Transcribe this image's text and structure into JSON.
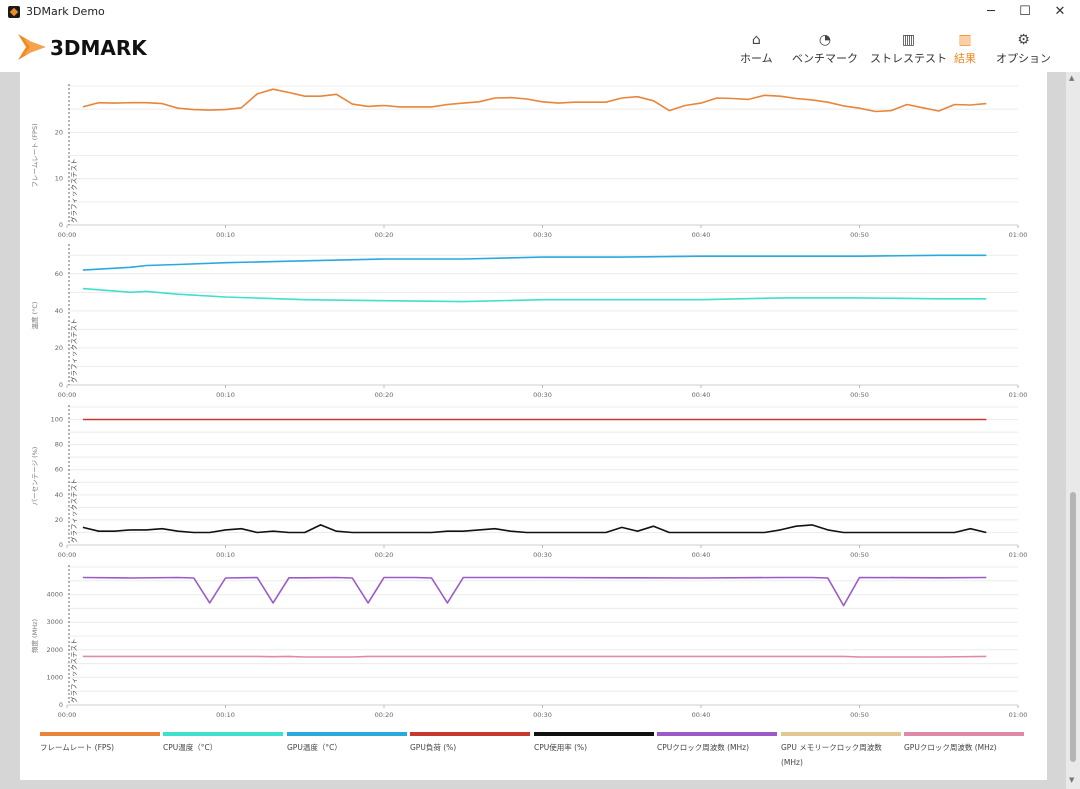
{
  "window": {
    "title": "3DMark Demo",
    "minimize": "─",
    "maximize": "☐",
    "close": "✕"
  },
  "nav": [
    {
      "label": "ホーム",
      "icon": "home-icon",
      "glyph": "⌂",
      "active": false
    },
    {
      "label": "ベンチマーク",
      "icon": "gauge-icon",
      "glyph": "◔",
      "active": false
    },
    {
      "label": "ストレステスト",
      "icon": "stress-chart-icon",
      "glyph": "▥",
      "active": false
    },
    {
      "label": "結果",
      "icon": "results-chart-icon",
      "glyph": "▥",
      "active": true
    },
    {
      "label": "オプション",
      "icon": "gear-icon",
      "glyph": "⚙",
      "active": false
    }
  ],
  "logo_text": "3DMARK",
  "colors": {
    "accent": "#f08a24",
    "fps": "#e8853a",
    "cpu_temp": "#3fe0cc",
    "gpu_temp": "#2aa8e0",
    "gpu_load": "#c8382e",
    "cpu_usage": "#111111",
    "cpu_clock": "#9b5ac8",
    "gpu_mem_clock": "#e0c890",
    "gpu_clock": "#e08aa8"
  },
  "chart_data": [
    {
      "type": "line",
      "ylabel": "フレームレート (FPS)",
      "marker_label": "グラフィックステスト",
      "xticks": [
        "00:00",
        "00:10",
        "00:20",
        "00:30",
        "00:40",
        "00:50",
        "01:00"
      ],
      "yticks": [
        0,
        10,
        20
      ],
      "ylim": [
        0,
        30
      ],
      "x": [
        1,
        2,
        3,
        4,
        5,
        6,
        7,
        8,
        9,
        10,
        11,
        12,
        13,
        14,
        15,
        16,
        17,
        18,
        19,
        20,
        21,
        22,
        23,
        24,
        25,
        26,
        27,
        28,
        29,
        30,
        31,
        32,
        33,
        34,
        35,
        36,
        37,
        38,
        39,
        40,
        41,
        42,
        43,
        44,
        45,
        46,
        47,
        48,
        49,
        50,
        51,
        52,
        53,
        54,
        55,
        56,
        57,
        58
      ],
      "series": [
        {
          "name": "フレームレート (FPS)",
          "color": "#e8853a",
          "values": [
            25.5,
            26.4,
            26.3,
            26.4,
            26.4,
            26.2,
            25.2,
            24.9,
            24.8,
            24.9,
            25.3,
            28.3,
            29.3,
            28.6,
            27.8,
            27.8,
            28.2,
            26.1,
            25.6,
            25.8,
            25.5,
            25.5,
            25.5,
            26,
            26.3,
            26.6,
            27.4,
            27.5,
            27.2,
            26.6,
            26.3,
            26.5,
            26.5,
            26.5,
            27.4,
            27.7,
            26.8,
            24.7,
            25.8,
            26.3,
            27.4,
            27.3,
            27.1,
            28,
            27.8,
            27.3,
            27,
            26.5,
            25.7,
            25.2,
            24.5,
            24.7,
            26,
            25.3,
            24.6,
            26,
            25.9,
            26.2
          ]
        }
      ]
    },
    {
      "type": "line",
      "ylabel": "温度 (°C)",
      "marker_label": "グラフィックステスト",
      "xticks": [
        "00:00",
        "00:10",
        "00:20",
        "00:30",
        "00:40",
        "00:50",
        "01:00"
      ],
      "yticks": [
        0,
        20,
        40,
        60
      ],
      "ylim": [
        0,
        75
      ],
      "x": [
        1,
        4,
        5,
        7,
        10,
        15,
        20,
        25,
        30,
        35,
        40,
        45,
        50,
        55,
        58
      ],
      "series": [
        {
          "name": "GPU温度（°C）",
          "color": "#2aa8e0",
          "values": [
            62,
            63.5,
            64.5,
            65,
            66,
            67,
            68,
            68,
            69,
            69,
            69.5,
            69.5,
            69.5,
            70,
            70
          ]
        },
        {
          "name": "CPU温度（°C）",
          "color": "#3fe0cc",
          "values": [
            52,
            50,
            50.5,
            49,
            47.5,
            46,
            45.5,
            45,
            46,
            46,
            46,
            47,
            47,
            46.5,
            46.5
          ]
        }
      ]
    },
    {
      "type": "line",
      "ylabel": "パーセンテージ (%)",
      "marker_label": "グラフィックステスト",
      "xticks": [
        "00:00",
        "00:10",
        "00:20",
        "00:30",
        "00:40",
        "00:50",
        "01:00"
      ],
      "yticks": [
        0,
        20,
        40,
        60,
        80,
        100
      ],
      "ylim": [
        0,
        110
      ],
      "x": [
        1,
        2,
        3,
        4,
        5,
        6,
        7,
        8,
        9,
        10,
        11,
        12,
        13,
        14,
        15,
        16,
        17,
        18,
        19,
        20,
        21,
        22,
        23,
        24,
        25,
        26,
        27,
        28,
        29,
        30,
        31,
        32,
        33,
        34,
        35,
        36,
        37,
        38,
        39,
        40,
        41,
        42,
        43,
        44,
        45,
        46,
        47,
        48,
        49,
        50,
        51,
        52,
        53,
        54,
        55,
        56,
        57,
        58
      ],
      "series": [
        {
          "name": "GPU負荷 (%)",
          "color": "#c8382e",
          "values": [
            100,
            100,
            100,
            100,
            100,
            100,
            100,
            100,
            100,
            100,
            100,
            100,
            100,
            100,
            100,
            100,
            100,
            100,
            100,
            100,
            100,
            100,
            100,
            100,
            100,
            100,
            100,
            100,
            100,
            100,
            100,
            100,
            100,
            100,
            100,
            100,
            100,
            100,
            100,
            100,
            100,
            100,
            100,
            100,
            100,
            100,
            100,
            100,
            100,
            100,
            100,
            100,
            100,
            100,
            100,
            100,
            100,
            100
          ]
        },
        {
          "name": "CPU使用率 (%)",
          "color": "#111111",
          "values": [
            14,
            11,
            11,
            12,
            12,
            13,
            11,
            10,
            10,
            12,
            13,
            10,
            11,
            10,
            10,
            16,
            11,
            10,
            10,
            10,
            10,
            10,
            10,
            11,
            11,
            12,
            13,
            11,
            10,
            10,
            10,
            10,
            10,
            10,
            14,
            11,
            15,
            10,
            10,
            10,
            10,
            10,
            10,
            10,
            12,
            15,
            16,
            12,
            10,
            10,
            10,
            10,
            10,
            10,
            10,
            10,
            13,
            10
          ]
        }
      ]
    },
    {
      "type": "line",
      "ylabel": "頻度 (MHz)",
      "marker_label": "グラフィックステスト",
      "xticks": [
        "00:00",
        "00:10",
        "00:20",
        "00:30",
        "00:40",
        "00:50",
        "01:00"
      ],
      "yticks": [
        0,
        1000,
        2000,
        3000,
        4000
      ],
      "ylim": [
        0,
        5000
      ],
      "x": [
        1,
        4,
        7,
        8,
        9,
        10,
        12,
        13,
        14,
        15,
        17,
        18,
        19,
        20,
        22,
        23,
        24,
        25,
        30,
        35,
        40,
        45,
        47,
        48,
        49,
        50,
        55,
        58
      ],
      "series": [
        {
          "name": "CPUクロック周波数 (MHz)",
          "color": "#9b5ac8",
          "values": [
            4620,
            4600,
            4620,
            4600,
            3700,
            4600,
            4620,
            3700,
            4610,
            4610,
            4620,
            4600,
            3700,
            4620,
            4620,
            4600,
            3700,
            4620,
            4620,
            4610,
            4600,
            4620,
            4620,
            4600,
            3600,
            4620,
            4610,
            4620
          ]
        },
        {
          "name": "GPUクロック周波数 (MHz)",
          "color": "#e08aa8",
          "values": [
            1760,
            1760,
            1760,
            1760,
            1760,
            1760,
            1760,
            1750,
            1760,
            1740,
            1740,
            1740,
            1760,
            1760,
            1760,
            1760,
            1760,
            1760,
            1760,
            1760,
            1760,
            1760,
            1760,
            1760,
            1760,
            1740,
            1740,
            1760
          ]
        }
      ]
    }
  ],
  "legend": [
    {
      "label": "フレームレート (FPS)",
      "color": "#e8853a"
    },
    {
      "label": "CPU温度（°C）",
      "color": "#3fe0cc"
    },
    {
      "label": "GPU温度（°C）",
      "color": "#2aa8e0"
    },
    {
      "label": "GPU負荷 (%)",
      "color": "#c8382e"
    },
    {
      "label": "CPU使用率 (%)",
      "color": "#111111"
    },
    {
      "label": "CPUクロック周波数 (MHz)",
      "color": "#9b5ac8"
    },
    {
      "label": "GPU メモリークロック周波数 (MHz)",
      "color": "#e0c890"
    },
    {
      "label": "GPUクロック周波数 (MHz)",
      "color": "#e08aa8"
    }
  ]
}
